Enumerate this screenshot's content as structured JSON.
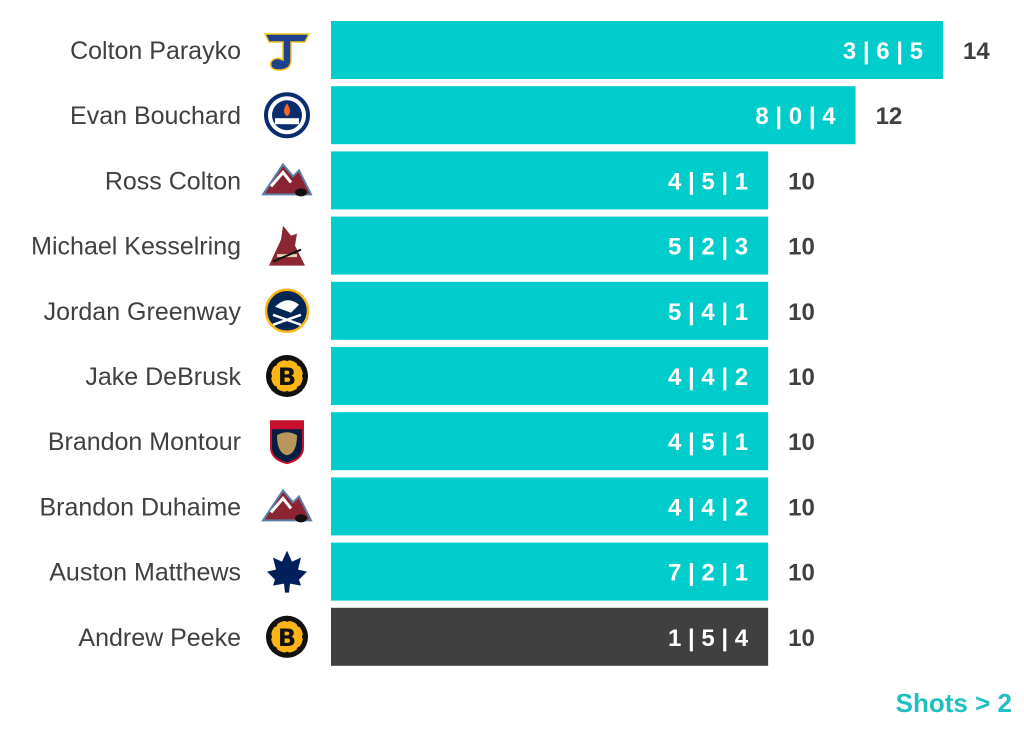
{
  "colors": {
    "bar": "#00cccc",
    "highlight_bar": "#404040",
    "text": "#404040",
    "footnote": "#1fbfbf"
  },
  "chart_data": {
    "type": "bar",
    "orientation": "horizontal",
    "categories": [
      "Colton Parayko",
      "Evan Bouchard",
      "Ross Colton",
      "Michael Kesselring",
      "Jordan Greenway",
      "Jake DeBrusk",
      "Brandon Montour",
      "Brandon Duhaime",
      "Auston Matthews",
      "Andrew Peeke"
    ],
    "values": [
      14,
      12,
      10,
      10,
      10,
      10,
      10,
      10,
      10,
      10
    ],
    "bar_labels": [
      "3 | 6 | 5",
      "8 | 0 | 4",
      "4 | 5 | 1",
      "5 | 2 | 3",
      "5 | 4 | 1",
      "4 | 4 | 2",
      "4 | 5 | 1",
      "4 | 4 | 2",
      "7 | 2 | 1",
      "1 | 5 | 4"
    ],
    "teams": [
      "blues-icon",
      "oilers-icon",
      "avalanche-icon",
      "coyotes-icon",
      "sabres-icon",
      "bruins-icon",
      "panthers-icon",
      "avalanche-icon",
      "maple-leafs-icon",
      "bruins-icon"
    ],
    "highlight_index": 9,
    "xlim": [
      0,
      14
    ],
    "grid": false,
    "legend": "none"
  },
  "footnote": "Shots > 2"
}
